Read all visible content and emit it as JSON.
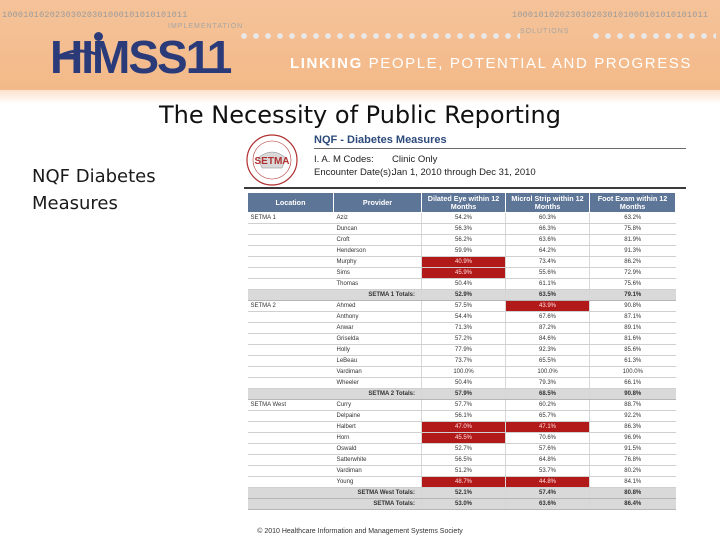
{
  "header": {
    "binary_left": "10001010202303020301000101010101011",
    "binary_right": "1000101020230302030101000101010101011",
    "tag_left": "IMPLEMENTATION",
    "tag_right": "SOLUTIONS",
    "logo_text": "HIMSS",
    "logo_number": "11",
    "tagline_bold": "LINKING",
    "tagline_rest": "PEOPLE, POTENTIAL AND PROGRESS",
    "colors": {
      "banner": "#f4bd8e",
      "logo": "#2b3b7a"
    }
  },
  "slide": {
    "title": "The Necessity of Public Reporting",
    "side_label": "NQF Diabetes Measures",
    "footer": "© 2010 Healthcare Information and Management Systems Society"
  },
  "report": {
    "seal_text": "SETMA",
    "heading": "NQF - Diabetes Measures",
    "meta": [
      {
        "label": "I. A. M Codes:",
        "value": "Clinic Only"
      },
      {
        "label": "Encounter Date(s):",
        "value": "Jan 1, 2010 through Dec 31, 2010"
      }
    ],
    "columns": [
      "Location",
      "Provider",
      "Dilated Eye within 12 Months",
      "Microl Strip within 12 Months",
      "Foot Exam within 12 Months"
    ],
    "highlight_color": "#b21a1a",
    "groups": [
      {
        "location": "SETMA 1",
        "rows": [
          {
            "provider": "Aziz",
            "v1": "54.2%",
            "v2": "60.3%",
            "v3": "63.2%"
          },
          {
            "provider": "Duncan",
            "v1": "56.3%",
            "v2": "66.3%",
            "v3": "75.8%"
          },
          {
            "provider": "Croft",
            "v1": "56.2%",
            "v2": "63.6%",
            "v3": "81.9%"
          },
          {
            "provider": "Henderson",
            "v1": "59.9%",
            "v2": "64.2%",
            "v3": "91.3%"
          },
          {
            "provider": "Murphy",
            "v1": "40.9%",
            "v2": "73.4%",
            "v3": "86.2%"
          },
          {
            "provider": "Sims",
            "v1": "45.9%",
            "v2": "55.6%",
            "v3": "72.9%"
          },
          {
            "provider": "Thomas",
            "v1": "50.4%",
            "v2": "61.1%",
            "v3": "75.6%"
          }
        ],
        "total_label": "SETMA 1 Totals:",
        "total": {
          "v1": "52.9%",
          "v2": "63.5%",
          "v3": "79.1%"
        }
      },
      {
        "location": "SETMA 2",
        "rows": [
          {
            "provider": "Ahmed",
            "v1": "57.5%",
            "v2": "43.9%",
            "v3": "90.8%"
          },
          {
            "provider": "Anthony",
            "v1": "54.4%",
            "v2": "67.6%",
            "v3": "87.1%"
          },
          {
            "provider": "Anwar",
            "v1": "71.3%",
            "v2": "87.2%",
            "v3": "89.1%"
          },
          {
            "provider": "Griselda",
            "v1": "57.2%",
            "v2": "84.6%",
            "v3": "81.6%"
          },
          {
            "provider": "Holly",
            "v1": "77.9%",
            "v2": "92.3%",
            "v3": "85.6%"
          },
          {
            "provider": "LeBeau",
            "v1": "73.7%",
            "v2": "65.5%",
            "v3": "61.3%"
          },
          {
            "provider": "Vardiman",
            "v1": "100.0%",
            "v2": "100.0%",
            "v3": "100.0%"
          },
          {
            "provider": "Wheeler",
            "v1": "50.4%",
            "v2": "79.3%",
            "v3": "66.1%"
          }
        ],
        "total_label": "SETMA 2 Totals:",
        "total": {
          "v1": "57.9%",
          "v2": "68.5%",
          "v3": "90.8%"
        }
      },
      {
        "location": "SETMA West",
        "rows": [
          {
            "provider": "Curry",
            "v1": "57.7%",
            "v2": "60.2%",
            "v3": "88.7%"
          },
          {
            "provider": "Delpaine",
            "v1": "56.1%",
            "v2": "65.7%",
            "v3": "92.2%"
          },
          {
            "provider": "Halbert",
            "v1": "47.0%",
            "v2": "47.1%",
            "v3": "86.3%"
          },
          {
            "provider": "Horn",
            "v1": "45.5%",
            "v2": "70.6%",
            "v3": "96.9%"
          },
          {
            "provider": "Oswald",
            "v1": "52.7%",
            "v2": "57.6%",
            "v3": "91.5%"
          },
          {
            "provider": "Satterwhite",
            "v1": "56.5%",
            "v2": "64.8%",
            "v3": "76.8%"
          },
          {
            "provider": "Vardiman",
            "v1": "51.2%",
            "v2": "53.7%",
            "v3": "80.2%"
          },
          {
            "provider": "Young",
            "v1": "48.7%",
            "v2": "44.8%",
            "v3": "84.1%"
          }
        ],
        "total_label": "SETMA West Totals:",
        "total": {
          "v1": "52.1%",
          "v2": "57.4%",
          "v3": "80.8%"
        }
      }
    ],
    "grand_total_label": "SETMA Totals:",
    "grand_total": {
      "v1": "53.0%",
      "v2": "63.6%",
      "v3": "86.4%"
    }
  }
}
